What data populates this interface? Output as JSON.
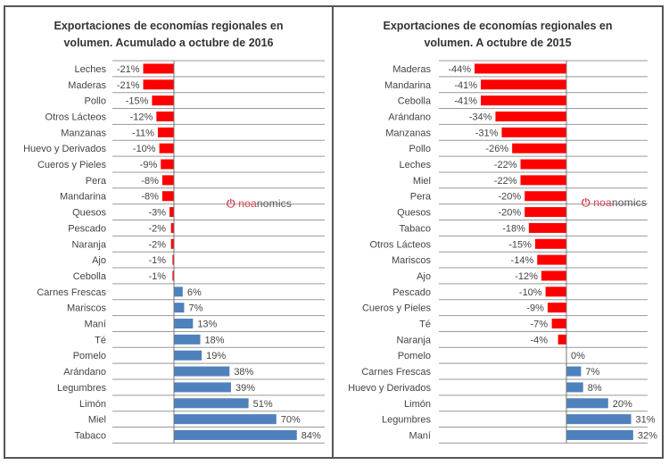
{
  "colors": {
    "negative": "#ff0000",
    "positive": "#4f81bd",
    "grid": "#999999",
    "axis": "#777777"
  },
  "watermark": {
    "icon": "power-icon",
    "prefix": "noa",
    "suffix": "nomics"
  },
  "chart_data": [
    {
      "type": "bar",
      "orientation": "horizontal",
      "title": "Exportaciones de economías regionales en volumen. Acumulado a octubre de 2016",
      "title_lines": [
        "Exportaciones de economías regionales en",
        "volumen. Acumulado a octubre de 2016"
      ],
      "xlabel": "",
      "ylabel": "",
      "unit": "%",
      "xlim": [
        -30,
        90
      ],
      "grid": true,
      "categories": [
        "Leches",
        "Maderas",
        "Pollo",
        "Otros Lácteos",
        "Manzanas",
        "Huevo y Derivados",
        "Cueros y Pieles",
        "Pera",
        "Mandarina",
        "Quesos",
        "Pescado",
        "Naranja",
        "Ajo",
        "Cebolla",
        "Carnes Frescas",
        "Mariscos",
        "Maní",
        "Té",
        "Pomelo",
        "Arándano",
        "Legumbres",
        "Limón",
        "Miel",
        "Tabaco"
      ],
      "values": [
        -21,
        -21,
        -15,
        -12,
        -11,
        -10,
        -9,
        -8,
        -8,
        -3,
        -2,
        -2,
        -1,
        -1,
        6,
        7,
        13,
        18,
        19,
        38,
        39,
        51,
        70,
        84
      ],
      "labels": [
        "-21%",
        "-21%",
        "-15%",
        "-12%",
        "-11%",
        "-10%",
        "-9%",
        "-8%",
        "-8%",
        "-3%",
        "-2%",
        "-2%",
        "-1%",
        "-1%",
        "6%",
        "7%",
        "13%",
        "18%",
        "19%",
        "38%",
        "39%",
        "51%",
        "70%",
        "84%"
      ]
    },
    {
      "type": "bar",
      "orientation": "horizontal",
      "title": "Exportaciones de economías regionales en volumen. A octubre de 2015",
      "title_lines": [
        "Exportaciones de economías regionales en",
        "volumen. A octubre de 2015"
      ],
      "xlabel": "",
      "ylabel": "",
      "unit": "%",
      "xlim": [
        -50,
        40
      ],
      "grid": true,
      "categories": [
        "Maderas",
        "Mandarina",
        "Cebolla",
        "Arándano",
        "Manzanas",
        "Pollo",
        "Leches",
        "Miel",
        "Pera",
        "Quesos",
        "Tabaco",
        "Otros Lácteos",
        "Mariscos",
        "Ajo",
        "Pescado",
        "Cueros y Pieles",
        "Té",
        "Naranja",
        "Pomelo",
        "Carnes Frescas",
        "Huevo y Derivados",
        "Limón",
        "Legumbres",
        "Maní"
      ],
      "values": [
        -44,
        -41,
        -41,
        -34,
        -31,
        -26,
        -22,
        -22,
        -20,
        -20,
        -18,
        -15,
        -14,
        -12,
        -10,
        -9,
        -7,
        -4,
        0,
        7,
        8,
        20,
        31,
        32
      ],
      "labels": [
        "-44%",
        "-41%",
        "-41%",
        "-34%",
        "-31%",
        "-26%",
        "-22%",
        "-22%",
        "-20%",
        "-20%",
        "-18%",
        "-15%",
        "-14%",
        "-12%",
        "-10%",
        "-9%",
        "-7%",
        "-4%",
        "0%",
        "7%",
        "8%",
        "20%",
        "31%",
        "32%"
      ]
    }
  ]
}
